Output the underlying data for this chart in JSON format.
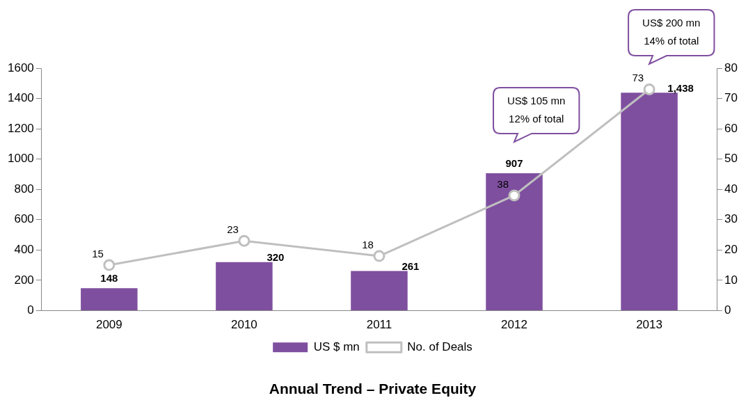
{
  "chart_data": {
    "type": "bar",
    "title": "Annual Trend – Private Equity",
    "categories": [
      "2009",
      "2010",
      "2011",
      "2012",
      "2013"
    ],
    "series": [
      {
        "name": "US $ mn",
        "color": "#7f4f9f",
        "values": [
          148,
          320,
          261,
          907,
          1438
        ],
        "value_labels": [
          "148",
          "320",
          "261",
          "907",
          "1,438"
        ]
      },
      {
        "name": "No. of Deals",
        "type": "line",
        "axis": "y2",
        "color": "#bfbfbf",
        "marker": "circle",
        "values": [
          15,
          23,
          18,
          38,
          73
        ],
        "value_labels": [
          "15",
          "23",
          "18",
          "38",
          "73"
        ]
      }
    ],
    "ylim": [
      0,
      1600
    ],
    "yticks": [
      0,
      200,
      400,
      600,
      800,
      1000,
      1200,
      1400,
      1600
    ],
    "y2lim": [
      0,
      80
    ],
    "y2ticks": [
      0,
      10,
      20,
      30,
      40,
      50,
      60,
      70,
      80
    ],
    "grid": false,
    "legend": "bottom",
    "annotations": [
      "US$ 105 mn\n12% of total",
      "US$ 200 mn\n14% of total"
    ]
  }
}
